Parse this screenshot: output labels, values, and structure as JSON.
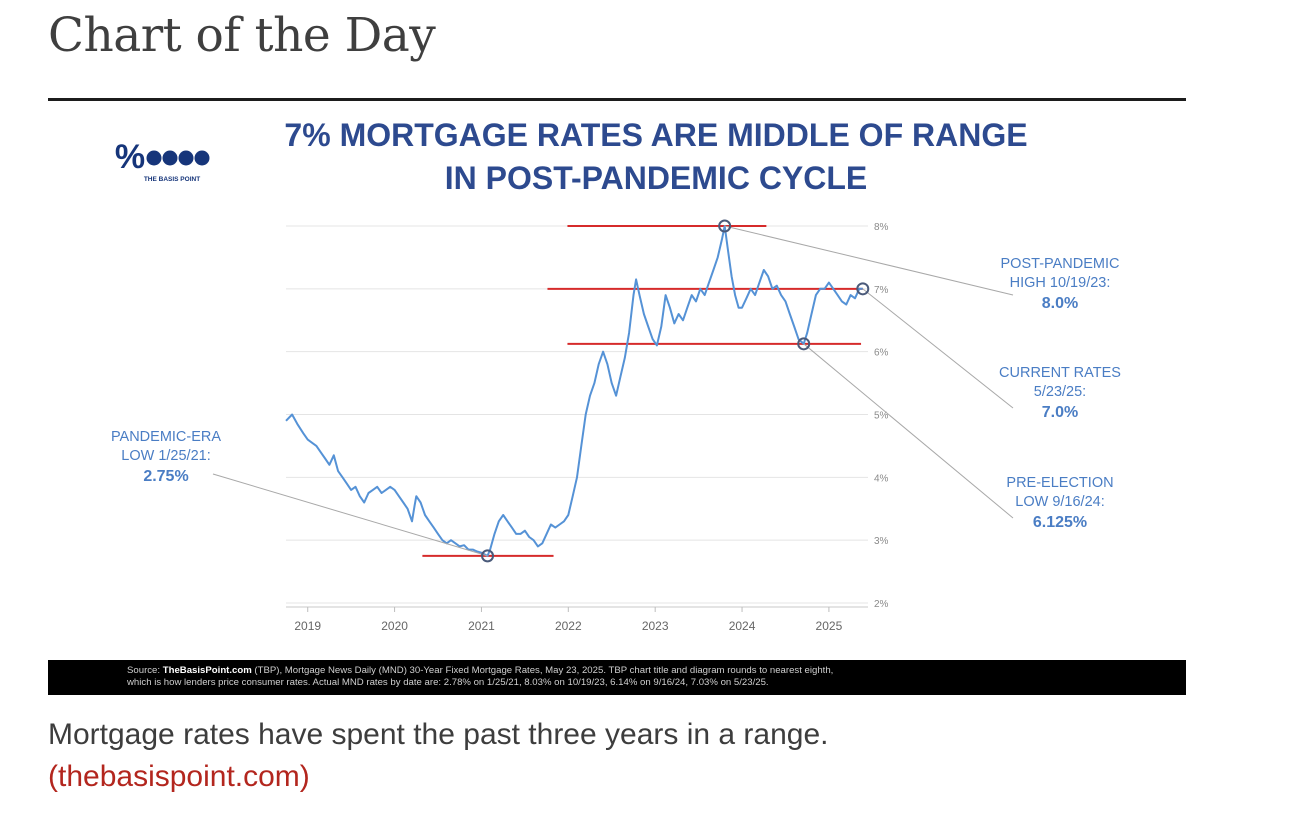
{
  "page": {
    "title": "Chart of the Day",
    "caption": "Mortgage rates have spent the past three years in a range.",
    "caption_link": "(thebasispoint.com)"
  },
  "logo": {
    "mark": "%",
    "name": "THE BASIS POINT"
  },
  "colors": {
    "title_blue": "#2d4a8f",
    "annotation_blue": "#4a7dc4",
    "line_blue": "#5592d6",
    "range_red": "#d62b2b",
    "link_red": "#b3261e"
  },
  "source": {
    "bold": "TheBasisPoint.com",
    "line1_rest": " (TBP), Mortgage News Daily (MND) 30-Year Fixed Mortgage Rates, May 23, 2025. TBP chart title and diagram rounds to nearest eighth,",
    "line2": "which is how lenders price consumer rates. Actual MND rates by date are: 2.78% on 1/25/21, 8.03% on 10/19/23, 6.14% on 9/16/24, 7.03% on 5/23/25.",
    "prefix": "Source: "
  },
  "chart_data": {
    "type": "line",
    "title_lines": [
      "7% MORTGAGE RATES ARE MIDDLE OF RANGE",
      "IN POST-PANDEMIC CYCLE"
    ],
    "xlabel": "",
    "ylabel": "",
    "xlim": [
      2018.75,
      2025.45
    ],
    "ylim": [
      2,
      8
    ],
    "x_ticks": [
      "2019",
      "2020",
      "2021",
      "2022",
      "2023",
      "2024",
      "2025"
    ],
    "y_ticks": [
      "2%",
      "3%",
      "4%",
      "5%",
      "6%",
      "7%",
      "8%"
    ],
    "grid": true,
    "series": [
      {
        "values": [
          [
            2018.75,
            4.9
          ],
          [
            2018.82,
            5.0
          ],
          [
            2018.88,
            4.85
          ],
          [
            2018.95,
            4.7
          ],
          [
            2019.0,
            4.6
          ],
          [
            2019.05,
            4.55
          ],
          [
            2019.1,
            4.5
          ],
          [
            2019.15,
            4.4
          ],
          [
            2019.2,
            4.3
          ],
          [
            2019.25,
            4.2
          ],
          [
            2019.3,
            4.35
          ],
          [
            2019.35,
            4.1
          ],
          [
            2019.4,
            4.0
          ],
          [
            2019.45,
            3.9
          ],
          [
            2019.5,
            3.8
          ],
          [
            2019.55,
            3.85
          ],
          [
            2019.6,
            3.7
          ],
          [
            2019.65,
            3.6
          ],
          [
            2019.7,
            3.75
          ],
          [
            2019.75,
            3.8
          ],
          [
            2019.8,
            3.85
          ],
          [
            2019.85,
            3.75
          ],
          [
            2019.9,
            3.8
          ],
          [
            2019.95,
            3.85
          ],
          [
            2020.0,
            3.8
          ],
          [
            2020.05,
            3.7
          ],
          [
            2020.1,
            3.6
          ],
          [
            2020.15,
            3.5
          ],
          [
            2020.2,
            3.3
          ],
          [
            2020.23,
            3.55
          ],
          [
            2020.25,
            3.7
          ],
          [
            2020.3,
            3.6
          ],
          [
            2020.35,
            3.4
          ],
          [
            2020.4,
            3.3
          ],
          [
            2020.45,
            3.2
          ],
          [
            2020.5,
            3.1
          ],
          [
            2020.55,
            3.0
          ],
          [
            2020.6,
            2.95
          ],
          [
            2020.65,
            3.0
          ],
          [
            2020.7,
            2.95
          ],
          [
            2020.75,
            2.9
          ],
          [
            2020.8,
            2.92
          ],
          [
            2020.85,
            2.85
          ],
          [
            2020.9,
            2.85
          ],
          [
            2020.95,
            2.82
          ],
          [
            2021.0,
            2.8
          ],
          [
            2021.07,
            2.75
          ],
          [
            2021.1,
            2.85
          ],
          [
            2021.15,
            3.1
          ],
          [
            2021.2,
            3.3
          ],
          [
            2021.25,
            3.4
          ],
          [
            2021.3,
            3.3
          ],
          [
            2021.35,
            3.2
          ],
          [
            2021.4,
            3.1
          ],
          [
            2021.45,
            3.1
          ],
          [
            2021.5,
            3.15
          ],
          [
            2021.55,
            3.05
          ],
          [
            2021.6,
            3.0
          ],
          [
            2021.65,
            2.9
          ],
          [
            2021.7,
            2.95
          ],
          [
            2021.75,
            3.1
          ],
          [
            2021.8,
            3.25
          ],
          [
            2021.85,
            3.2
          ],
          [
            2021.9,
            3.25
          ],
          [
            2021.95,
            3.3
          ],
          [
            2022.0,
            3.4
          ],
          [
            2022.05,
            3.7
          ],
          [
            2022.1,
            4.0
          ],
          [
            2022.15,
            4.5
          ],
          [
            2022.2,
            5.0
          ],
          [
            2022.25,
            5.3
          ],
          [
            2022.3,
            5.5
          ],
          [
            2022.35,
            5.8
          ],
          [
            2022.4,
            6.0
          ],
          [
            2022.45,
            5.8
          ],
          [
            2022.5,
            5.5
          ],
          [
            2022.55,
            5.3
          ],
          [
            2022.6,
            5.6
          ],
          [
            2022.65,
            5.9
          ],
          [
            2022.7,
            6.3
          ],
          [
            2022.75,
            6.9
          ],
          [
            2022.78,
            7.15
          ],
          [
            2022.82,
            6.9
          ],
          [
            2022.87,
            6.6
          ],
          [
            2022.92,
            6.4
          ],
          [
            2022.97,
            6.2
          ],
          [
            2023.02,
            6.1
          ],
          [
            2023.07,
            6.4
          ],
          [
            2023.12,
            6.9
          ],
          [
            2023.17,
            6.7
          ],
          [
            2023.22,
            6.45
          ],
          [
            2023.27,
            6.6
          ],
          [
            2023.32,
            6.5
          ],
          [
            2023.37,
            6.7
          ],
          [
            2023.42,
            6.9
          ],
          [
            2023.47,
            6.8
          ],
          [
            2023.52,
            7.0
          ],
          [
            2023.57,
            6.9
          ],
          [
            2023.62,
            7.1
          ],
          [
            2023.67,
            7.3
          ],
          [
            2023.72,
            7.5
          ],
          [
            2023.77,
            7.8
          ],
          [
            2023.8,
            8.0
          ],
          [
            2023.84,
            7.6
          ],
          [
            2023.88,
            7.2
          ],
          [
            2023.92,
            6.9
          ],
          [
            2023.96,
            6.7
          ],
          [
            2024.0,
            6.7
          ],
          [
            2024.05,
            6.85
          ],
          [
            2024.1,
            7.0
          ],
          [
            2024.15,
            6.9
          ],
          [
            2024.2,
            7.1
          ],
          [
            2024.25,
            7.3
          ],
          [
            2024.3,
            7.2
          ],
          [
            2024.35,
            7.0
          ],
          [
            2024.4,
            7.05
          ],
          [
            2024.45,
            6.9
          ],
          [
            2024.5,
            6.8
          ],
          [
            2024.55,
            6.6
          ],
          [
            2024.6,
            6.4
          ],
          [
            2024.65,
            6.2
          ],
          [
            2024.71,
            6.125
          ],
          [
            2024.75,
            6.3
          ],
          [
            2024.8,
            6.6
          ],
          [
            2024.85,
            6.9
          ],
          [
            2024.9,
            7.0
          ],
          [
            2024.95,
            7.0
          ],
          [
            2025.0,
            7.1
          ],
          [
            2025.05,
            7.0
          ],
          [
            2025.1,
            6.9
          ],
          [
            2025.15,
            6.8
          ],
          [
            2025.2,
            6.75
          ],
          [
            2025.25,
            6.9
          ],
          [
            2025.3,
            6.85
          ],
          [
            2025.35,
            7.0
          ],
          [
            2025.39,
            7.0
          ]
        ]
      }
    ],
    "range_lines": [
      {
        "y": 8.0,
        "x": [
          2021.99,
          2024.28
        ]
      },
      {
        "y": 7.0,
        "x": [
          2021.76,
          2025.39
        ]
      },
      {
        "y": 6.125,
        "x": [
          2021.99,
          2025.37
        ]
      },
      {
        "y": 2.75,
        "x": [
          2020.32,
          2021.83
        ]
      }
    ],
    "annotations": [
      {
        "id": "pandemic-low",
        "lines": [
          "PANDEMIC-ERA",
          "LOW 1/25/21:"
        ],
        "value": "2.75%",
        "point": [
          2021.07,
          2.75
        ]
      },
      {
        "id": "post-pandemic-high",
        "lines": [
          "POST-PANDEMIC",
          "HIGH 10/19/23:"
        ],
        "value": "8.0%",
        "point": [
          2023.8,
          8.0
        ]
      },
      {
        "id": "current-rates",
        "lines": [
          "CURRENT RATES",
          "5/23/25:"
        ],
        "value": "7.0%",
        "point": [
          2025.39,
          7.0
        ]
      },
      {
        "id": "pre-election-low",
        "lines": [
          "PRE-ELECTION",
          "LOW 9/16/24:"
        ],
        "value": "6.125%",
        "point": [
          2024.71,
          6.125
        ]
      }
    ]
  }
}
